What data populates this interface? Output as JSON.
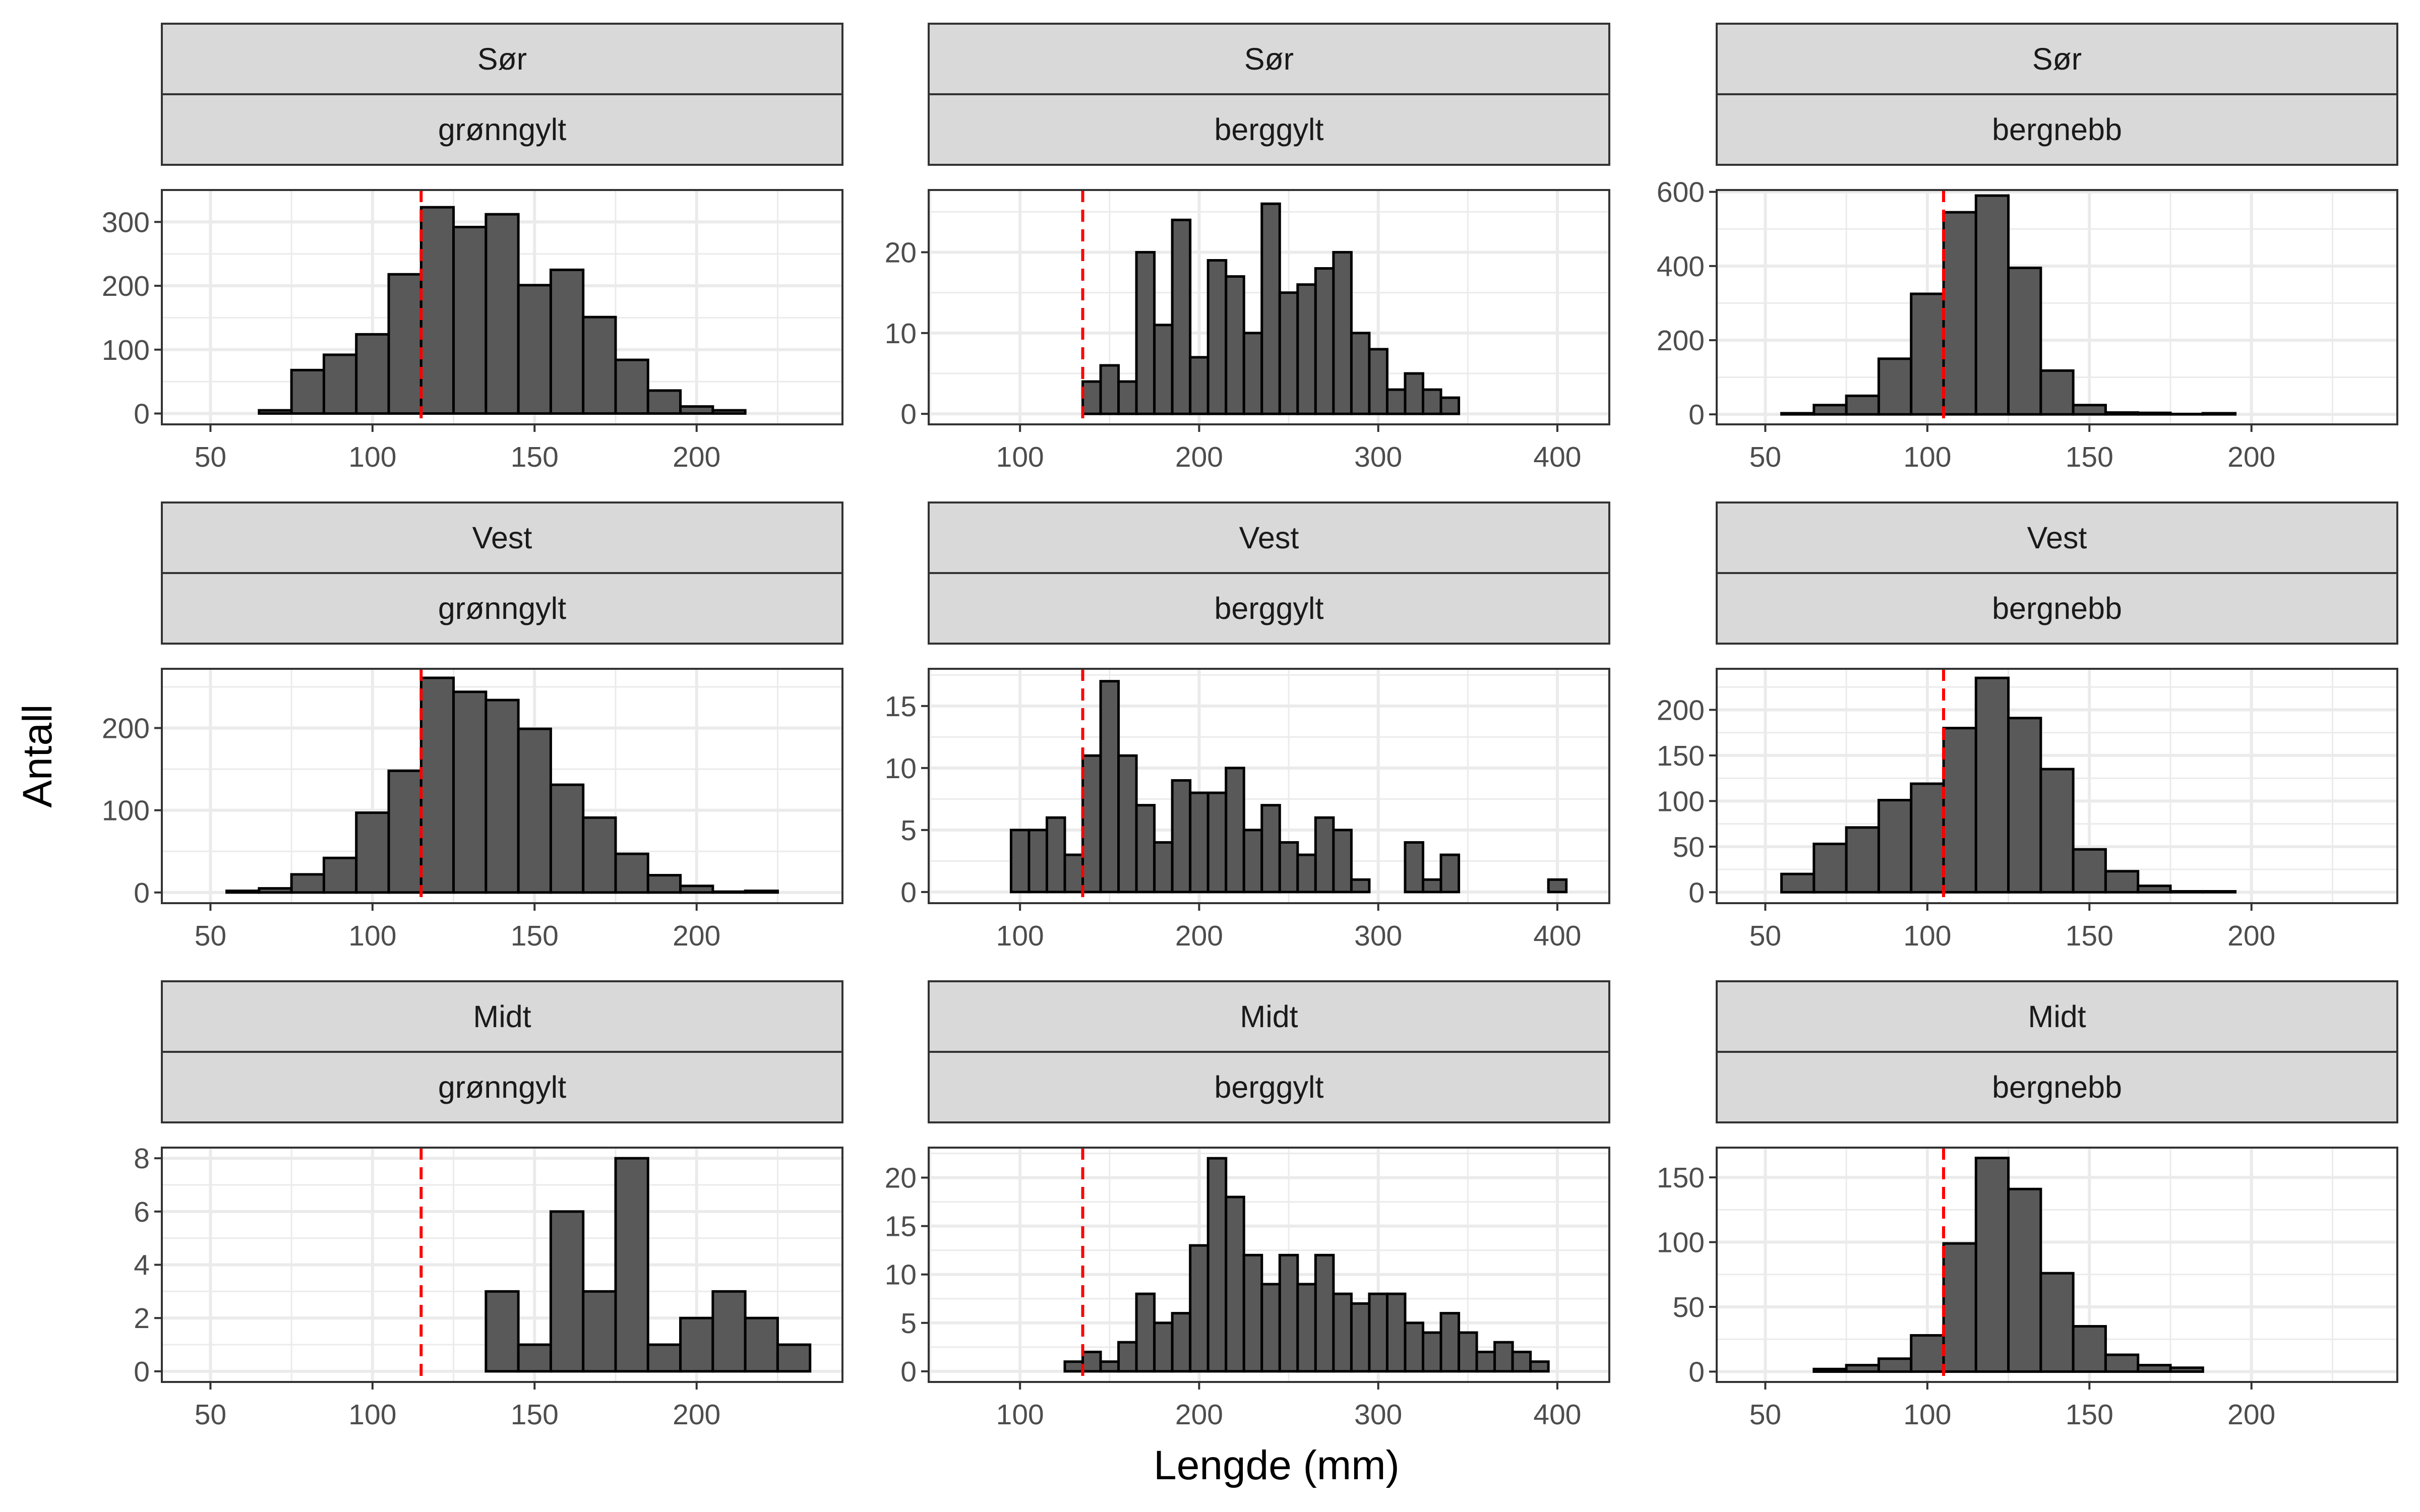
{
  "figure": {
    "xlabel": "Lengde (mm)",
    "ylabel": "Antall",
    "colors": {
      "bar_fill": "#595959",
      "bar_stroke": "#000000",
      "threshold_line": "#ff0000",
      "strip_fill": "#d9d9d9",
      "strip_border": "#333333",
      "grid": "#ebebeb",
      "panel_border": "#333333"
    }
  },
  "chart_data": [
    {
      "type": "bar",
      "region": "Sør",
      "species": "grønngylt",
      "bin_width": 10,
      "bin_start": 45,
      "values": [
        0,
        0,
        5,
        68,
        92,
        124,
        218,
        323,
        292,
        312,
        201,
        225,
        151,
        84,
        36,
        11,
        5,
        0,
        0
      ],
      "threshold": 115,
      "xlim": [
        35,
        245
      ],
      "ylim": [
        -17,
        350
      ],
      "xticks": [
        50,
        100,
        150,
        200
      ],
      "yticks": [
        0,
        100,
        200,
        300
      ]
    },
    {
      "type": "bar",
      "region": "Sør",
      "species": "berggylt",
      "bin_width": 10,
      "bin_start": 65,
      "values": [
        0,
        0,
        0,
        0,
        0,
        0,
        0,
        4,
        6,
        4,
        20,
        11,
        24,
        7,
        19,
        17,
        10,
        26,
        15,
        16,
        18,
        20,
        10,
        8,
        3,
        5,
        3,
        2,
        0,
        0,
        0,
        0,
        0,
        0,
        0
      ],
      "threshold": 135,
      "xlim": [
        49,
        429
      ],
      "ylim": [
        -1.3,
        27.7
      ],
      "xticks": [
        100,
        200,
        300,
        400
      ],
      "yticks": [
        0,
        10,
        20
      ]
    },
    {
      "type": "bar",
      "region": "Sør",
      "species": "bergnebb",
      "bin_width": 10,
      "bin_start": 45,
      "values": [
        0,
        3,
        25,
        50,
        150,
        325,
        545,
        590,
        395,
        118,
        25,
        5,
        4,
        1,
        3,
        0,
        0,
        0,
        0
      ],
      "threshold": 105,
      "xlim": [
        35,
        245
      ],
      "ylim": [
        -27,
        605
      ],
      "xticks": [
        50,
        100,
        150,
        200
      ],
      "yticks": [
        0,
        200,
        400,
        600
      ]
    },
    {
      "type": "bar",
      "region": "Vest",
      "species": "grønngylt",
      "bin_width": 10,
      "bin_start": 45,
      "values": [
        0,
        2,
        5,
        22,
        42,
        97,
        148,
        261,
        244,
        234,
        199,
        131,
        91,
        47,
        21,
        8,
        1,
        2,
        0
      ],
      "threshold": 115,
      "xlim": [
        35,
        245
      ],
      "ylim": [
        -13,
        272
      ],
      "xticks": [
        50,
        100,
        150,
        200
      ],
      "yticks": [
        0,
        100,
        200
      ]
    },
    {
      "type": "bar",
      "region": "Vest",
      "species": "berggylt",
      "bin_width": 10,
      "bin_start": 65,
      "values": [
        0,
        0,
        0,
        5,
        5,
        6,
        3,
        11,
        17,
        11,
        7,
        4,
        9,
        8,
        8,
        10,
        5,
        7,
        4,
        3,
        6,
        5,
        1,
        0,
        0,
        4,
        1,
        3,
        0,
        0,
        0,
        0,
        0,
        1,
        0
      ],
      "threshold": 135,
      "xlim": [
        49,
        429
      ],
      "ylim": [
        -0.9,
        18.0
      ],
      "xticks": [
        100,
        200,
        300,
        400
      ],
      "yticks": [
        0,
        5,
        10,
        15
      ]
    },
    {
      "type": "bar",
      "region": "Vest",
      "species": "bergnebb",
      "bin_width": 10,
      "bin_start": 45,
      "values": [
        0,
        20,
        53,
        71,
        101,
        119,
        180,
        235,
        191,
        135,
        47,
        23,
        7,
        1,
        1,
        0,
        0,
        0,
        0
      ],
      "threshold": 105,
      "xlim": [
        35,
        245
      ],
      "ylim": [
        -12,
        245
      ],
      "xticks": [
        50,
        100,
        150,
        200
      ],
      "yticks": [
        0,
        50,
        100,
        150,
        200
      ]
    },
    {
      "type": "bar",
      "region": "Midt",
      "species": "grønngylt",
      "bin_width": 10,
      "bin_start": 45,
      "values": [
        0,
        0,
        0,
        0,
        0,
        0,
        0,
        0,
        0,
        3,
        1,
        6,
        3,
        8,
        1,
        2,
        3,
        2,
        1
      ],
      "threshold": 115,
      "xlim": [
        35,
        245
      ],
      "ylim": [
        -0.4,
        8.4
      ],
      "xticks": [
        50,
        100,
        150,
        200
      ],
      "yticks": [
        0,
        2,
        4,
        6,
        8
      ]
    },
    {
      "type": "bar",
      "region": "Midt",
      "species": "berggylt",
      "bin_width": 10,
      "bin_start": 65,
      "values": [
        0,
        0,
        0,
        0,
        0,
        0,
        1,
        2,
        1,
        3,
        8,
        5,
        6,
        13,
        22,
        18,
        12,
        9,
        12,
        9,
        12,
        8,
        7,
        8,
        8,
        5,
        4,
        6,
        4,
        2,
        3,
        2,
        1,
        0,
        0
      ],
      "threshold": 135,
      "xlim": [
        49,
        429
      ],
      "ylim": [
        -1.1,
        23.1
      ],
      "xticks": [
        100,
        200,
        300,
        400
      ],
      "yticks": [
        0,
        5,
        10,
        15,
        20
      ]
    },
    {
      "type": "bar",
      "region": "Midt",
      "species": "bergnebb",
      "bin_width": 10,
      "bin_start": 45,
      "values": [
        0,
        0,
        2,
        5,
        10,
        28,
        99,
        165,
        141,
        76,
        35,
        13,
        5,
        3,
        0,
        0,
        0,
        0,
        0
      ],
      "threshold": 105,
      "xlim": [
        35,
        245
      ],
      "ylim": [
        -8,
        173
      ],
      "xticks": [
        50,
        100,
        150,
        200
      ],
      "yticks": [
        0,
        50,
        100,
        150
      ]
    }
  ]
}
